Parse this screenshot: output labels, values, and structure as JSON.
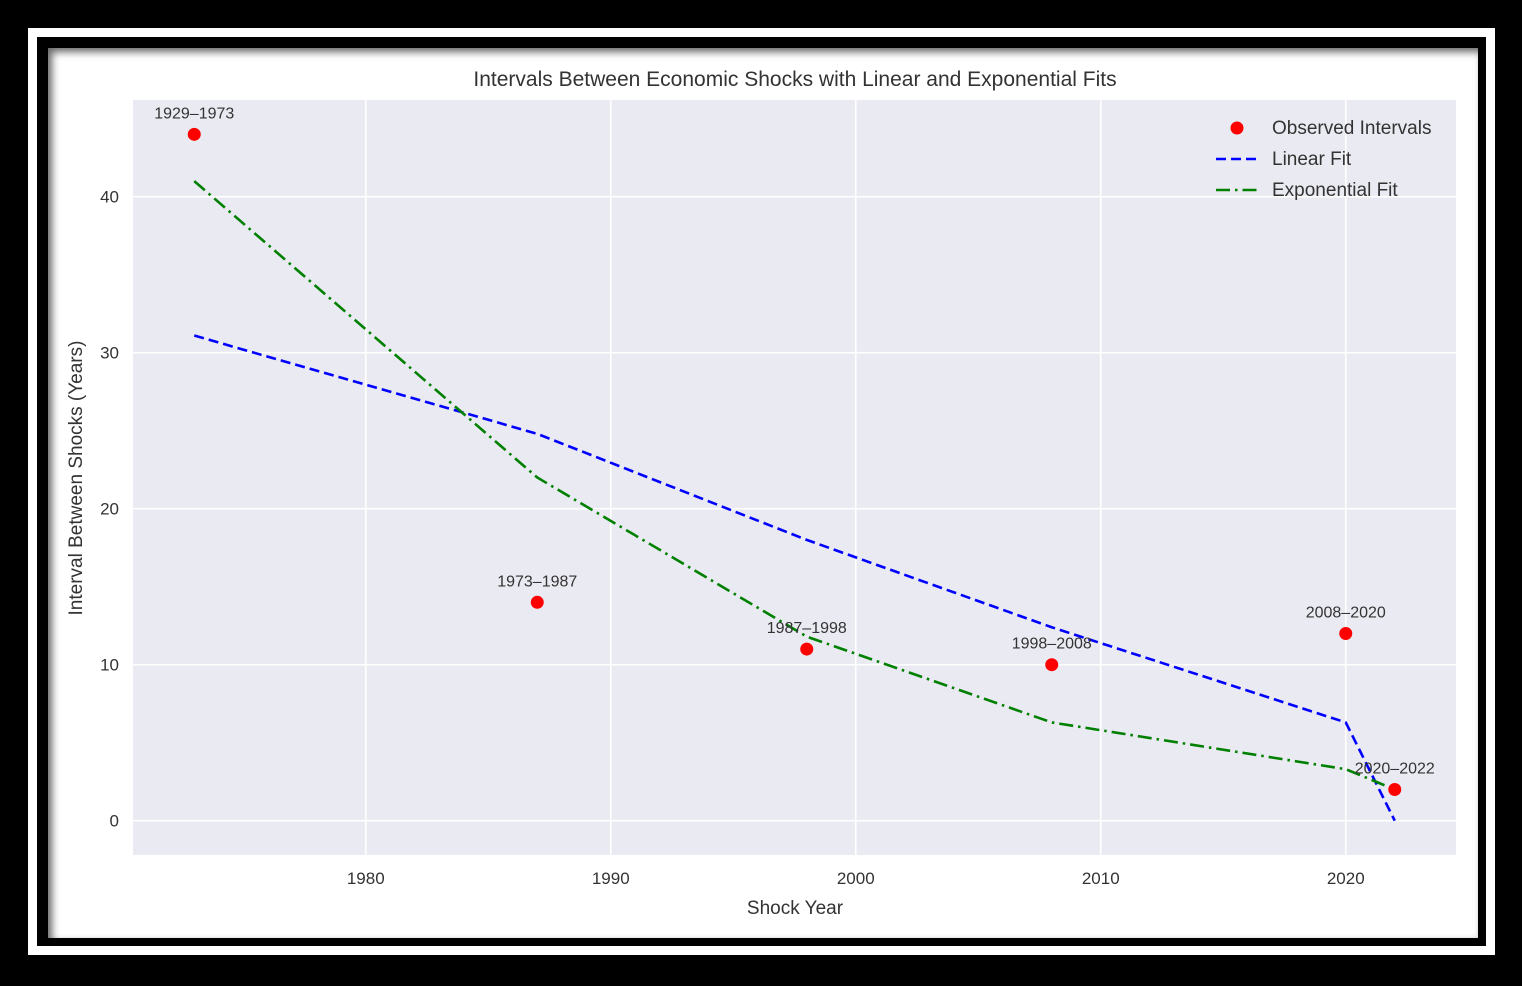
{
  "chart_data": {
    "type": "line",
    "title": "Intervals Between Economic Shocks with Linear and Exponential Fits",
    "xlabel": "Shock Year",
    "ylabel": "Interval Between Shocks (Years)",
    "xlim": [
      1970.5,
      2024.5
    ],
    "ylim": [
      -2.2,
      46.2
    ],
    "xticks": [
      1980,
      1990,
      2000,
      2010,
      2020
    ],
    "yticks": [
      0,
      10,
      20,
      30,
      40
    ],
    "grid": true,
    "legend_position": "top-right",
    "x": [
      1973,
      1987,
      1998,
      2008,
      2020,
      2022
    ],
    "series": [
      {
        "name": "Observed Intervals",
        "kind": "scatter",
        "color": "#ff0000",
        "values": [
          44,
          14,
          11,
          10,
          12,
          2
        ],
        "labels": [
          "1929–1973",
          "1973–1987",
          "1987–1998",
          "1998–2008",
          "2008–2020",
          "2020–2022"
        ]
      },
      {
        "name": "Linear Fit",
        "kind": "line",
        "style": "dashed",
        "color": "#0000ff",
        "values": [
          31.1,
          24.8,
          18.0,
          12.4,
          6.3,
          0
        ]
      },
      {
        "name": "Exponential Fit",
        "kind": "line",
        "style": "dashdot",
        "color": "#008000",
        "values": [
          41.0,
          22.0,
          11.8,
          6.3,
          3.3,
          2.0
        ]
      }
    ]
  }
}
